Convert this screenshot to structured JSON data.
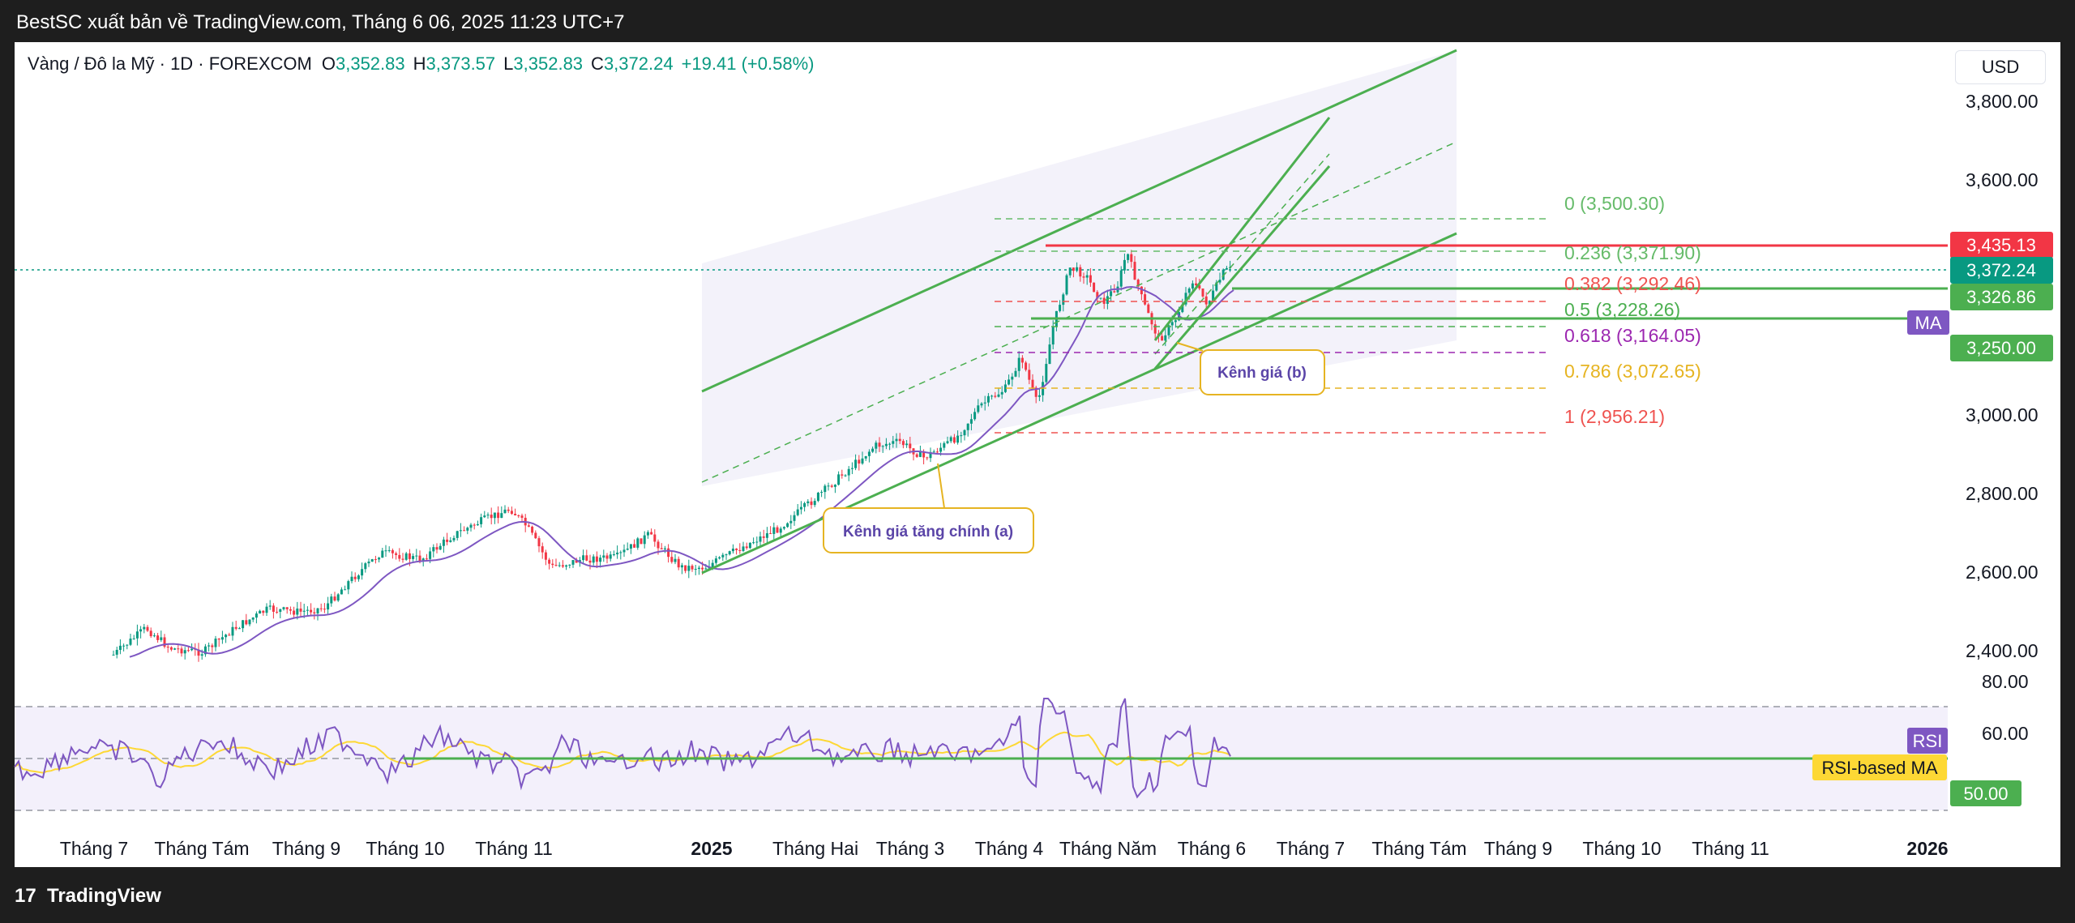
{
  "header": {
    "publisher": "BestSC xuất bản về TradingView.com, Tháng 6 06, 2025 11:23 UTC+7"
  },
  "legend": {
    "symbol": "Vàng / Đô la Mỹ · 1D · FOREXCOM",
    "o_label": "O",
    "o_value": "3,352.83",
    "h_label": "H",
    "h_value": "3,373.57",
    "l_label": "L",
    "l_value": "3,352.83",
    "c_label": "C",
    "c_value": "3,372.24",
    "change": "+19.41 (+0.58%)"
  },
  "currency": "USD",
  "price_axis": [
    "3,800.00",
    "3,600.00",
    "3,000.00",
    "2,800.00",
    "2,600.00",
    "2,400.00"
  ],
  "price_tags": [
    {
      "text": "3,435.13",
      "color": "#f23645"
    },
    {
      "text": "3,372.24",
      "color": "#089981"
    },
    {
      "text": "3,326.86",
      "color": "#4caf50"
    },
    {
      "text": "3,250.00",
      "color": "#4caf50"
    }
  ],
  "ma_tag": {
    "text": "MA",
    "color": "#7e57c2"
  },
  "fib_levels": [
    {
      "text": "0 (3,500.30)",
      "color": "#66bb6a"
    },
    {
      "text": "0.236 (3,371.90)",
      "color": "#66bb6a"
    },
    {
      "text": "0.382 (3,292.46)",
      "color": "#ef5350"
    },
    {
      "text": "0.5 (3,228.26)",
      "color": "#4caf50"
    },
    {
      "text": "0.618 (3,164.05)",
      "color": "#9c27b0"
    },
    {
      "text": "0.786 (3,072.65)",
      "color": "#e6b422"
    },
    {
      "text": "1 (2,956.21)",
      "color": "#ef5350"
    }
  ],
  "notes": {
    "channel_a": "Kênh giá tăng chính (a)",
    "channel_b": "Kênh giá (b)"
  },
  "rsi_axis": [
    "80.00",
    "60.00"
  ],
  "rsi_tags": {
    "rsi": {
      "text": "RSI",
      "color": "#7e57c2"
    },
    "rsi_ma": {
      "text": "RSI-based MA",
      "color": "#fdd835"
    },
    "level_50": {
      "text": "50.00",
      "color": "#4caf50"
    }
  },
  "time_axis": [
    "Tháng 7",
    "Tháng Tám",
    "Tháng 9",
    "Tháng 10",
    "Tháng 11",
    "2025",
    "Tháng Hai",
    "Tháng 3",
    "Tháng 4",
    "Tháng Năm",
    "Tháng 6",
    "Tháng 7",
    "Tháng Tám",
    "Tháng 9",
    "Tháng 10",
    "Tháng 11",
    "2026"
  ],
  "footer": {
    "logo_mark": "17",
    "brand": "TradingView"
  },
  "colors": {
    "up": "#089981",
    "down": "#f23645",
    "channel": "#4caf50",
    "ma": "#7e57c2",
    "rsi": "#7e57c2",
    "rsi_ma": "#fdd835"
  }
}
